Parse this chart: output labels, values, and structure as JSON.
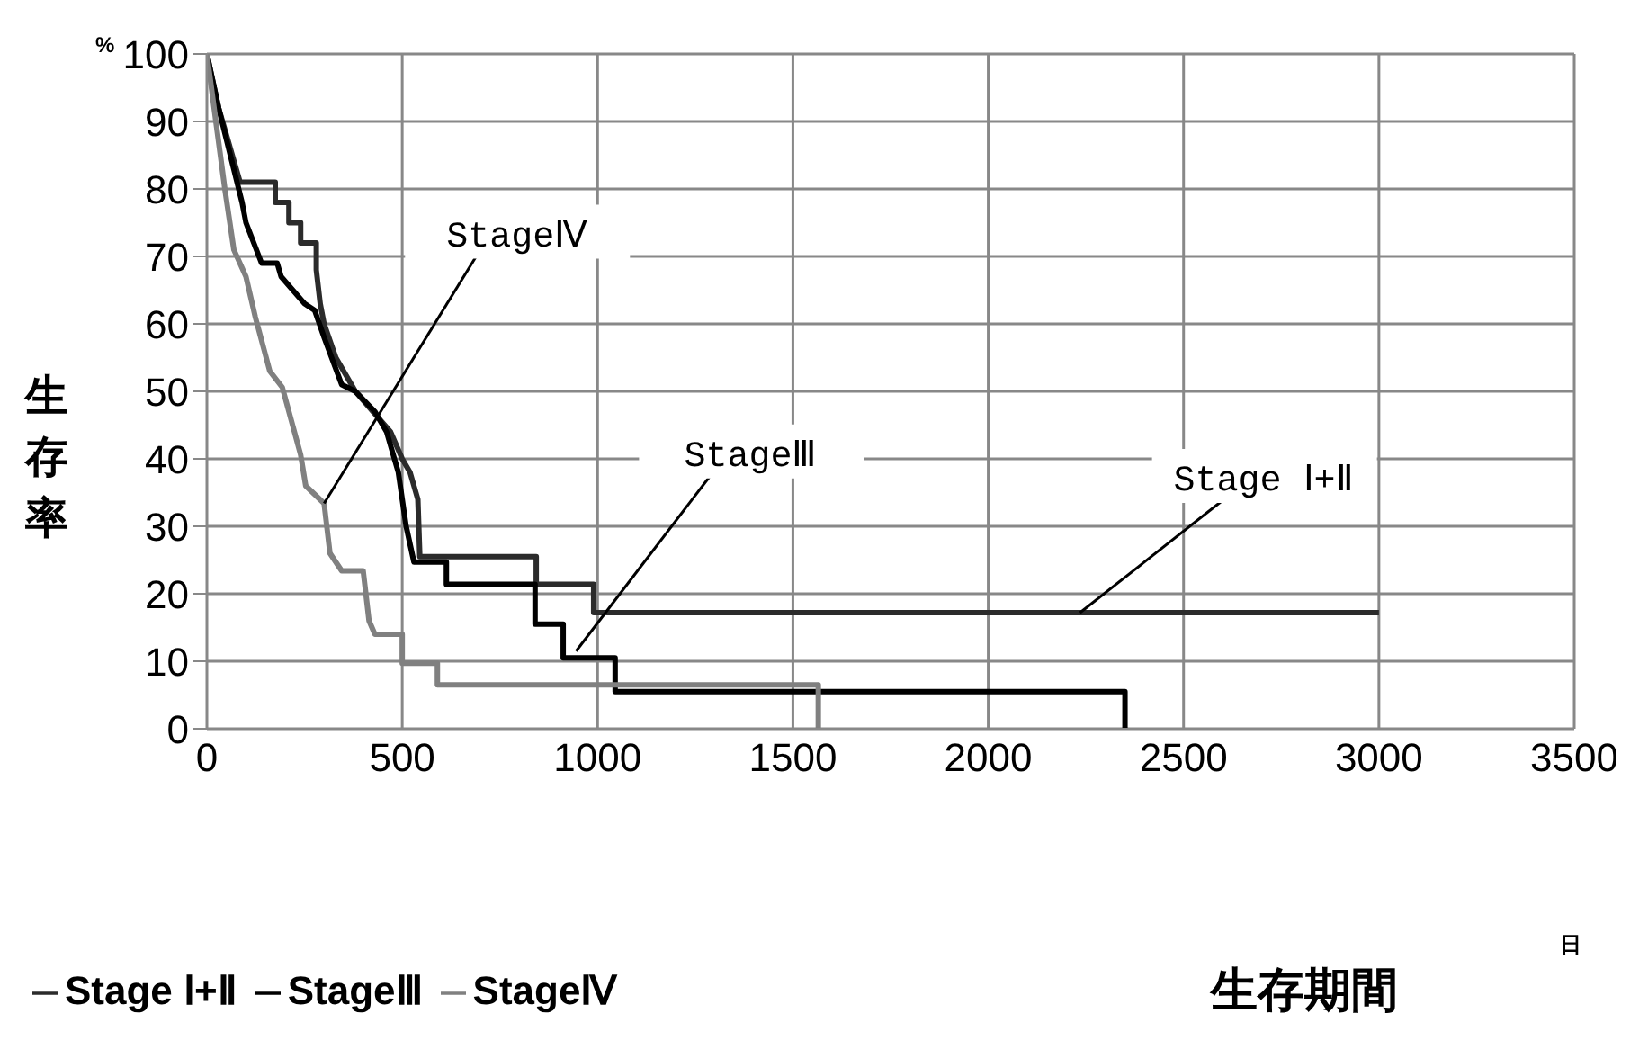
{
  "chart_data": {
    "type": "line",
    "xlabel": "生存期間",
    "ylabel": "生存率",
    "xlim": [
      0,
      3500
    ],
    "xticks": [
      0,
      500,
      1000,
      1500,
      2000,
      2500,
      3000,
      3500
    ],
    "ylim": [
      0,
      100
    ],
    "yticks": [
      0,
      10,
      20,
      30,
      40,
      50,
      60,
      70,
      80,
      90,
      100
    ],
    "grid": true,
    "legend": "bottom",
    "marker": "none",
    "line_style": "solid",
    "series": [
      {
        "name": "Stage Ⅰ+Ⅱ",
        "color": "#2b2b2b",
        "x": [
          0,
          30,
          60,
          85,
          175,
          175,
          210,
          210,
          240,
          240,
          280,
          280,
          290,
          300,
          330,
          380,
          410,
          440,
          470,
          500,
          520,
          540,
          545,
          843,
          843,
          990,
          990,
          3000
        ],
        "values": [
          100,
          92,
          86,
          81,
          81,
          78,
          78,
          75,
          75,
          72,
          72,
          68,
          63,
          60,
          55,
          50,
          48,
          46,
          44,
          40,
          38,
          34,
          25.5,
          25.5,
          21.4,
          21.4,
          17.2,
          17.2
        ]
      },
      {
        "name": "StageⅢ",
        "color": "#000000",
        "x": [
          0,
          30,
          60,
          90,
          100,
          120,
          140,
          180,
          190,
          220,
          250,
          276,
          300,
          345,
          380,
          430,
          460,
          490,
          510,
          530,
          613,
          613,
          840,
          840,
          912,
          912,
          1045,
          1045,
          2350,
          2350
        ],
        "values": [
          100,
          92,
          85,
          78,
          75,
          72,
          69,
          69,
          67,
          65,
          63,
          62,
          58,
          51,
          50,
          47,
          44,
          38,
          30,
          24.7,
          24.7,
          21.4,
          21.4,
          15.5,
          15.5,
          10.5,
          10.5,
          5.5,
          5.5,
          0
        ]
      },
      {
        "name": "StageⅣ",
        "color": "#808080",
        "x": [
          0,
          23,
          46,
          69,
          100,
          124,
          161,
          193,
          240,
          253,
          300,
          315,
          345,
          400,
          415,
          430,
          500,
          500,
          590,
          590,
          1565,
          1565
        ],
        "values": [
          100,
          90,
          80,
          71,
          67,
          61,
          53,
          50.6,
          40.6,
          36,
          33.4,
          26,
          23.4,
          23.4,
          16,
          14,
          14,
          9.7,
          9.7,
          6.5,
          6.5,
          0
        ]
      }
    ],
    "annotations": [
      "%",
      "日",
      {
        "text": "StageⅣ",
        "x": 300,
        "y": 33.4
      },
      {
        "text": "StageⅢ",
        "x": 945,
        "y": 11.5
      },
      {
        "text": "Stage Ⅰ+Ⅱ",
        "x": 2235,
        "y": 17.2
      }
    ]
  }
}
